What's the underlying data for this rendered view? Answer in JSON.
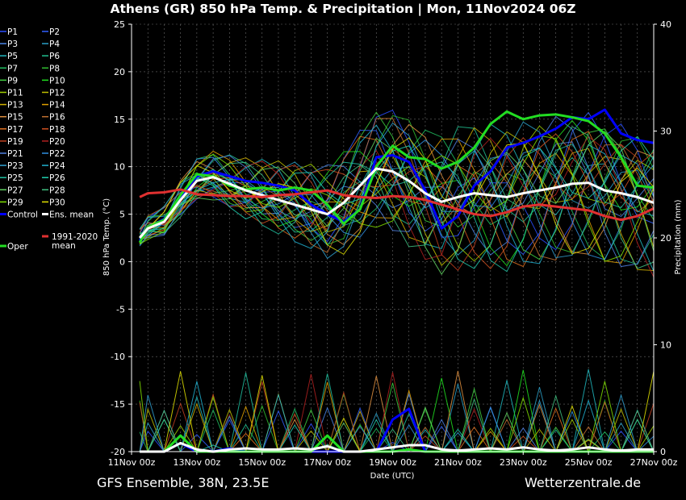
{
  "title": "Athens  (GR)  850 hPa Temp. & Precipitation | Mon, 11Nov2024 06Z",
  "footer_left": "GFS Ensemble, 38N, 23.5E",
  "footer_right": "Wetterzentrale.de",
  "colors": {
    "background": "#000000",
    "control": "#0000ff",
    "ens_mean": "#ffffff",
    "oper": "#22dd22",
    "clim_mean": "#e03030",
    "grid": "#888888"
  },
  "legend": [
    {
      "label": "P1",
      "color": "#2a4dff"
    },
    {
      "label": "P2",
      "color": "#3060ff"
    },
    {
      "label": "P3",
      "color": "#4a86e8"
    },
    {
      "label": "P4",
      "color": "#2aa0c8"
    },
    {
      "label": "P5",
      "color": "#20b8c0"
    },
    {
      "label": "P6",
      "color": "#20c090"
    },
    {
      "label": "P7",
      "color": "#20c060"
    },
    {
      "label": "P8",
      "color": "#30c030"
    },
    {
      "label": "P9",
      "color": "#40d040"
    },
    {
      "label": "P10",
      "color": "#20e020"
    },
    {
      "label": "P11",
      "color": "#a0d000"
    },
    {
      "label": "P12",
      "color": "#c0c000"
    },
    {
      "label": "P13",
      "color": "#d0b000"
    },
    {
      "label": "P14",
      "color": "#e0a000"
    },
    {
      "label": "P15",
      "color": "#e09040"
    },
    {
      "label": "P16",
      "color": "#c07030"
    },
    {
      "label": "P17",
      "color": "#e07020"
    },
    {
      "label": "P18",
      "color": "#d05020"
    },
    {
      "label": "P19",
      "color": "#c04020"
    },
    {
      "label": "P20",
      "color": "#b02020"
    },
    {
      "label": "P21",
      "color": "#5080e0"
    },
    {
      "label": "P22",
      "color": "#3090e0"
    },
    {
      "label": "P23",
      "color": "#30a0d0"
    },
    {
      "label": "P24",
      "color": "#20b0d0"
    },
    {
      "label": "P25",
      "color": "#20c0a0"
    },
    {
      "label": "P26",
      "color": "#20d0b0"
    },
    {
      "label": "P27",
      "color": "#60d060"
    },
    {
      "label": "P28",
      "color": "#40c080"
    },
    {
      "label": "P29",
      "color": "#80e000"
    },
    {
      "label": "P30",
      "color": "#e0e000"
    },
    {
      "label": "Control",
      "color": "#0000ff"
    },
    {
      "label": "Ens. mean",
      "color": "#ffffff"
    },
    {
      "label": "Oper",
      "color": "#22dd22"
    },
    {
      "label": "1991-2020 mean",
      "color": "#e03030"
    }
  ],
  "chart_data": {
    "type": "line",
    "xlabel": "Date (UTC)",
    "ylabel": "850 hPa Temp. (°C)",
    "y2label": "Precipitation (mm)",
    "ylim": [
      -20,
      25
    ],
    "y2lim": [
      0,
      40
    ],
    "yticks": [
      "25",
      "20",
      "15",
      "10",
      "5",
      "0",
      "-5",
      "-10",
      "-15",
      "-20"
    ],
    "y2ticks": [
      "40",
      "30",
      "20",
      "10",
      "0"
    ],
    "xlim": [
      0,
      16
    ],
    "xticks": [
      {
        "x": 0,
        "label": "11Nov 00z"
      },
      {
        "x": 2,
        "label": "13Nov 00z"
      },
      {
        "x": 4,
        "label": "15Nov 00z"
      },
      {
        "x": 6,
        "label": "17Nov 00z"
      },
      {
        "x": 8,
        "label": "19Nov 00z"
      },
      {
        "x": 10,
        "label": "21Nov 00z"
      },
      {
        "x": 12,
        "label": "23Nov 00z"
      },
      {
        "x": 14,
        "label": "25Nov 00z"
      },
      {
        "x": 16,
        "label": "27Nov 00z"
      }
    ],
    "grid": true,
    "x_days": [
      0.25,
      0.5,
      1,
      1.5,
      2,
      2.5,
      3,
      3.5,
      4,
      4.5,
      5,
      5.5,
      6,
      6.5,
      7,
      7.5,
      8,
      8.5,
      9,
      9.5,
      10,
      10.5,
      11,
      11.5,
      12,
      12.5,
      13,
      13.5,
      14,
      14.5,
      15,
      15.5,
      16
    ],
    "series": [
      {
        "name": "Control",
        "color": "#0000ff",
        "width": 3,
        "values": [
          2.2,
          3.5,
          4.5,
          6.8,
          9.0,
          9.5,
          9.0,
          8.5,
          8.3,
          8.0,
          7.5,
          6.0,
          5.0,
          4.2,
          5.5,
          11.0,
          11.2,
          10.5,
          7.5,
          3.5,
          4.8,
          8.0,
          9.5,
          12.0,
          12.5,
          13.2,
          14.0,
          15.2,
          15.0,
          16.0,
          13.5,
          12.8,
          12.5
        ]
      },
      {
        "name": "Oper",
        "color": "#22dd22",
        "width": 3,
        "values": [
          2.0,
          3.6,
          4.4,
          7.0,
          9.2,
          9.0,
          8.0,
          7.6,
          7.8,
          7.5,
          7.8,
          7.5,
          6.0,
          4.0,
          5.5,
          10.0,
          12.2,
          11.0,
          10.8,
          9.8,
          10.5,
          12.0,
          14.5,
          15.8,
          15.0,
          15.4,
          15.5,
          15.2,
          14.8,
          13.5,
          11.0,
          8.0,
          7.8
        ]
      },
      {
        "name": "Ens. mean",
        "color": "#ffffff",
        "width": 3,
        "values": [
          2.5,
          3.5,
          4.2,
          6.5,
          8.5,
          8.9,
          8.2,
          7.5,
          7.0,
          6.5,
          6.0,
          5.5,
          5.0,
          6.2,
          8.0,
          9.8,
          9.5,
          8.5,
          7.2,
          6.3,
          6.8,
          7.2,
          7.0,
          6.8,
          7.2,
          7.5,
          7.8,
          8.2,
          8.3,
          7.5,
          7.2,
          6.8,
          6.2
        ]
      },
      {
        "name": "1991-2020 mean",
        "color": "#e03030",
        "width": 3,
        "values": [
          6.8,
          7.2,
          7.3,
          7.6,
          7.1,
          7.0,
          6.9,
          6.9,
          6.8,
          7.0,
          7.1,
          7.3,
          7.5,
          7.0,
          6.8,
          6.7,
          6.9,
          6.8,
          6.5,
          6.0,
          5.5,
          5.0,
          4.8,
          5.2,
          5.8,
          6.0,
          5.8,
          5.6,
          5.4,
          4.8,
          4.4,
          4.8,
          5.6
        ]
      }
    ],
    "members_note": "",
    "precip_series": [
      {
        "name": "Control",
        "color": "#0000ff",
        "width": 3,
        "values": [
          0,
          0,
          0,
          0.8,
          0,
          0,
          0.3,
          0,
          0,
          0,
          0,
          0,
          0,
          0,
          0,
          0,
          3.0,
          4.0,
          0,
          0,
          0,
          0,
          0,
          0,
          0,
          0,
          0,
          0,
          0,
          0,
          0,
          0,
          0
        ]
      },
      {
        "name": "Oper",
        "color": "#22dd22",
        "width": 3,
        "values": [
          0,
          0,
          0,
          1.5,
          0,
          0,
          0,
          0,
          0,
          0,
          0,
          0,
          1.5,
          0,
          0,
          0,
          0,
          0.2,
          0,
          0,
          0,
          0,
          0,
          0,
          0,
          0,
          0,
          0,
          0,
          0,
          0,
          0,
          0
        ]
      },
      {
        "name": "Ens. mean",
        "color": "#ffffff",
        "width": 3,
        "values": [
          0,
          0,
          0,
          0.8,
          0.2,
          0,
          0.2,
          0.3,
          0.2,
          0.2,
          0.3,
          0.2,
          0.5,
          0,
          0,
          0.2,
          0.4,
          0.6,
          0.6,
          0.2,
          0.1,
          0.2,
          0.3,
          0.2,
          0.4,
          0.2,
          0.1,
          0.2,
          0.4,
          0.2,
          0.1,
          0.2,
          0.2
        ]
      }
    ]
  }
}
